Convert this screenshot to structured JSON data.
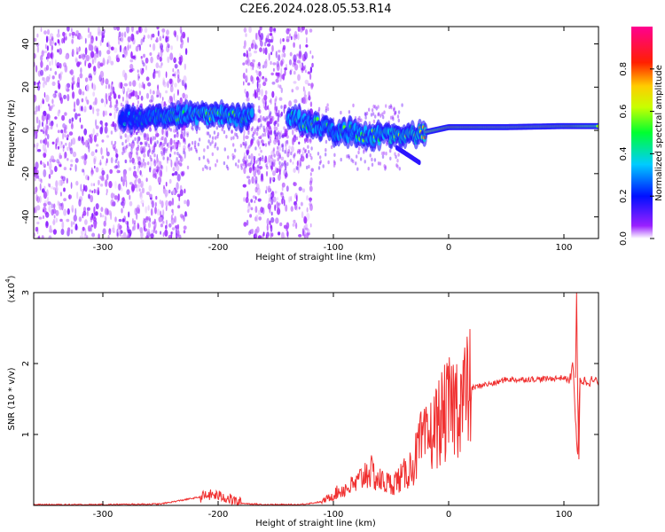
{
  "title": "C2E6.2024.028.05.53.R14",
  "chart_data": [
    {
      "type": "heatmap",
      "xlabel": "Height of straight line (km)",
      "ylabel": "Frequency (Hz)",
      "xlim": [
        -360,
        130
      ],
      "ylim": [
        -50,
        48
      ],
      "x_ticks": [
        -300,
        -200,
        -100,
        0,
        100
      ],
      "y_ticks": [
        -40,
        -20,
        0,
        20,
        40
      ],
      "colorbar": {
        "label": "Normalized spectral amplitude",
        "range": [
          0,
          1
        ],
        "ticks": [
          "0.0",
          "0.2",
          "0.4",
          "0.6",
          "0.8"
        ],
        "colors": [
          "#ffffff",
          "#7a00ff",
          "#0000ff",
          "#00e5ff",
          "#00ff40",
          "#ffff00",
          "#ff2a00",
          "#ff0080"
        ]
      },
      "noise_regions_km": [
        [
          -360,
          -226
        ],
        [
          -178,
          -118
        ]
      ],
      "ridge": {
        "description_points": [
          {
            "x": -285,
            "f": 5,
            "amp": 0.3
          },
          {
            "x": -240,
            "f": 7,
            "amp": 0.45
          },
          {
            "x": -200,
            "f": 7,
            "amp": 0.5
          },
          {
            "x": -180,
            "f": 6,
            "amp": 0.45
          },
          {
            "x": -130,
            "f": 5,
            "amp": 0.5
          },
          {
            "x": -100,
            "f": 0,
            "amp": 0.45
          },
          {
            "x": -60,
            "f": -3,
            "amp": 0.5
          },
          {
            "x": -30,
            "f": -2,
            "amp": 0.6
          },
          {
            "x": 0,
            "f": 1.5,
            "amp": 0.85
          },
          {
            "x": 50,
            "f": 1.5,
            "amp": 0.95
          },
          {
            "x": 100,
            "f": 2,
            "amp": 0.9
          },
          {
            "x": 130,
            "f": 2,
            "amp": 0.6
          }
        ]
      }
    },
    {
      "type": "line",
      "xlabel": "Height of straight line (km)",
      "ylabel": "SNR (10 * v/v)",
      "y_multiplier": "(x10^4)",
      "xlim": [
        -360,
        130
      ],
      "ylim": [
        0,
        3
      ],
      "x_ticks": [
        -300,
        -200,
        -100,
        0,
        100
      ],
      "y_ticks": [
        1,
        2,
        3
      ],
      "line_color": "#f03030",
      "series": [
        {
          "x": [
            -360,
            -300,
            -250,
            -215,
            -205,
            -195,
            -180,
            -160,
            -130,
            -110,
            -95,
            -80,
            -70,
            -60,
            -50,
            -40,
            -30,
            -25,
            -20,
            -15,
            -10,
            0,
            10,
            20,
            30,
            40,
            50,
            60,
            70,
            80,
            90,
            100,
            105,
            108,
            110,
            112,
            114,
            116,
            120,
            130
          ],
          "values": [
            0.01,
            0.01,
            0.02,
            0.12,
            0.15,
            0.12,
            0.03,
            0.01,
            0.01,
            0.05,
            0.2,
            0.3,
            0.5,
            0.35,
            0.3,
            0.4,
            0.6,
            0.85,
            0.9,
            1.0,
            1.15,
            1.35,
            1.5,
            1.65,
            1.7,
            1.72,
            1.78,
            1.77,
            1.78,
            1.78,
            1.79,
            1.8,
            1.75,
            2.0,
            1.2,
            0.65,
            1.8,
            1.75,
            1.76,
            1.75
          ]
        }
      ]
    }
  ]
}
